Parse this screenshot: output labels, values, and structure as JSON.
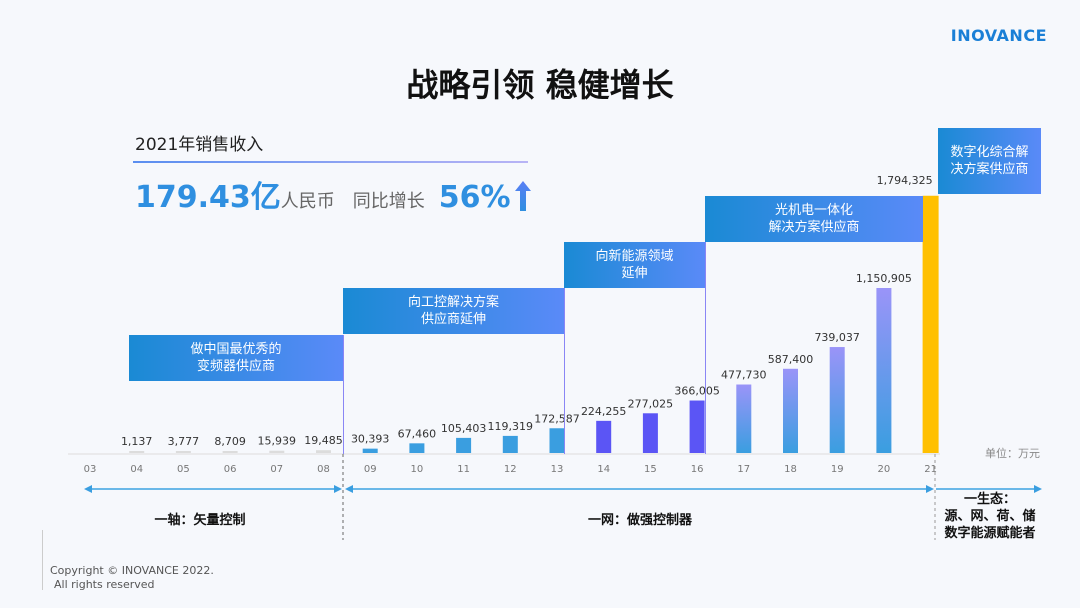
{
  "logo": "INOVANCE",
  "title": "战略引领 稳健增长",
  "revenue": {
    "label": "2021年销售收入",
    "value": "179.43亿",
    "unit": "人民币",
    "yoy_label": "同比增长",
    "yoy_value": "56%"
  },
  "unit_label": "单位：万元",
  "banners": [
    "做中国最优秀的\n变频器供应商",
    "向工控解决方案\n供应商延伸",
    "向新能源领域\n延伸",
    "光机电一体化\n解决方案供应商",
    "数字化综合解\n决方案供应商"
  ],
  "phases": [
    "一轴：矢量控制",
    "一网：做强控制器",
    "一生态：\n源、网、荷、储\n数字能源赋能者"
  ],
  "copyright": [
    "Copyright © INOVANCE 2022.",
    "All rights reserved"
  ],
  "colors": {
    "early": "#dcdcdc",
    "blue": "#3a9ee0",
    "violet": "#5b55f5",
    "gradient_top": "#9a94f8",
    "highlight": "#ffc000",
    "banner": "#1a8ad4"
  },
  "chart_data": {
    "type": "bar",
    "categories": [
      "03",
      "04",
      "05",
      "06",
      "07",
      "08",
      "09",
      "10",
      "11",
      "12",
      "13",
      "14",
      "15",
      "16",
      "17",
      "18",
      "19",
      "20",
      "21"
    ],
    "values": [
      null,
      1137,
      3777,
      8709,
      15939,
      19485,
      30393,
      67460,
      105403,
      119319,
      172587,
      224255,
      277025,
      366005,
      477730,
      587400,
      739037,
      1150905,
      1794325
    ],
    "labels": [
      "",
      "1,137",
      "3,777",
      "8,709",
      "15,939",
      "19,485",
      "30,393",
      "67,460",
      "105,403",
      "119,319",
      "172,587",
      "224,255",
      "277,025",
      "366,005",
      "477,730",
      "587,400",
      "739,037",
      "1,150,905",
      "1,794,325"
    ],
    "ylabel": "单位：万元"
  }
}
